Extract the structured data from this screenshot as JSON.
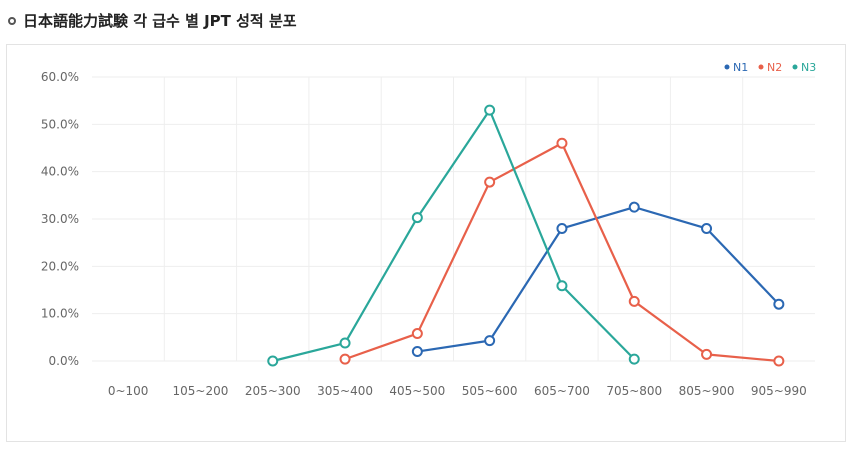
{
  "header": {
    "title": "日本語能力試験 각 급수 별 JPT 성적 분포"
  },
  "colors": {
    "N1": "#2b68b3",
    "N2": "#e8604a",
    "N3": "#2aa79a",
    "grid": "#eeeeee",
    "axis_text": "#666666"
  },
  "chart_data": {
    "type": "line",
    "title": "",
    "xlabel": "",
    "ylabel": "",
    "categories": [
      "0~100",
      "105~200",
      "205~300",
      "305~400",
      "405~500",
      "505~600",
      "605~700",
      "705~800",
      "805~900",
      "905~990"
    ],
    "ylim": [
      0,
      60
    ],
    "yticks": [
      "0.0%",
      "10.0%",
      "20.0%",
      "30.0%",
      "40.0%",
      "50.0%",
      "60.0%"
    ],
    "grid": true,
    "legend_position": "top-right",
    "series": [
      {
        "name": "N1",
        "values": [
          null,
          null,
          null,
          null,
          2.0,
          4.3,
          28.0,
          32.5,
          28.0,
          12.0
        ]
      },
      {
        "name": "N2",
        "values": [
          null,
          null,
          null,
          0.4,
          5.8,
          37.8,
          46.0,
          12.6,
          1.4,
          0.0
        ]
      },
      {
        "name": "N3",
        "values": [
          null,
          null,
          0.0,
          3.8,
          30.3,
          53.0,
          15.9,
          0.4,
          null,
          null
        ]
      }
    ]
  }
}
